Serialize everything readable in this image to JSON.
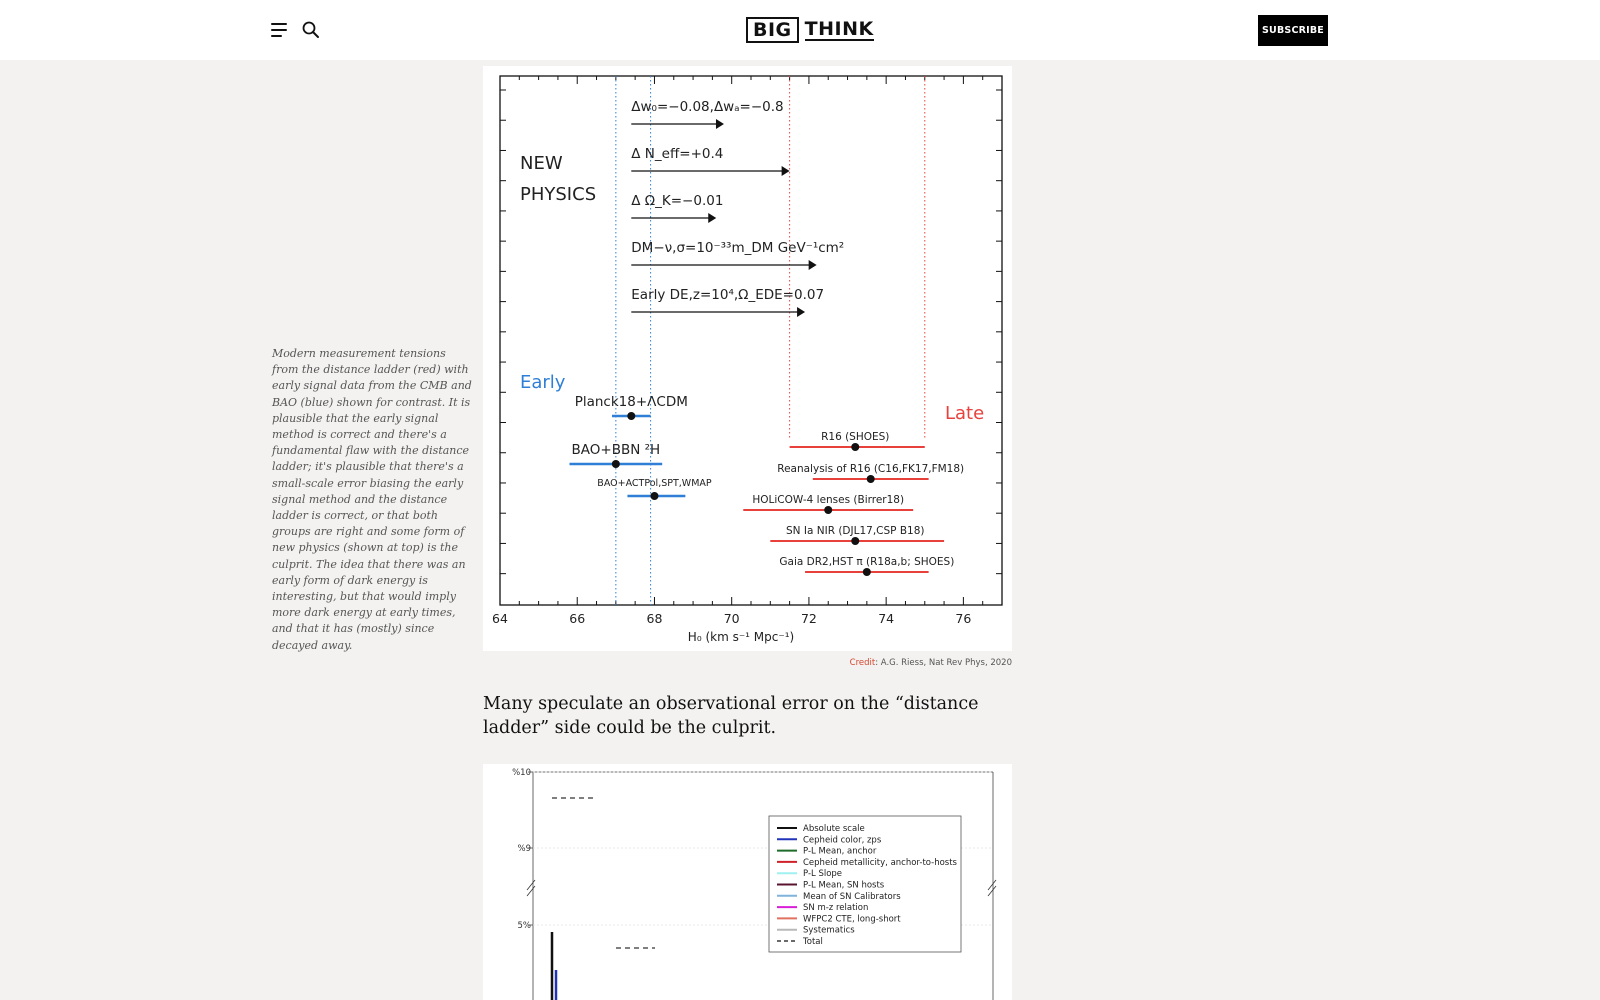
{
  "header": {
    "logo_part1": "BIG",
    "logo_part2": "THINK",
    "subscribe_label": "SUBSCRIBE"
  },
  "figure1": {
    "new_physics_line1": "NEW",
    "new_physics_line2": "PHYSICS",
    "early_label": "Early",
    "late_label": "Late",
    "xlabel": "H₀ (km s⁻¹ Mpc⁻¹)",
    "new_physics_rows": [
      {
        "label": "Δw₀=−0.08,Δwₐ=−0.8",
        "arrow_end": 69.8
      },
      {
        "label": "Δ N_eff=+0.4",
        "arrow_end": 71.5
      },
      {
        "label": "Δ Ω_K=−0.01",
        "arrow_end": 69.6
      },
      {
        "label": "DM−ν,σ=10⁻³³m_DM GeV⁻¹cm²",
        "arrow_end": 72.2
      },
      {
        "label": "Early DE,z=10⁴,Ω_EDE=0.07",
        "arrow_end": 71.9
      }
    ],
    "chart_data": {
      "type": "scatter",
      "xlim": [
        64,
        77
      ],
      "x_ticks": [
        "64",
        "66",
        "68",
        "70",
        "72",
        "74",
        "76"
      ],
      "xlabel": "H₀ (km s⁻¹ Mpc⁻¹)",
      "early_band": [
        67.0,
        67.9
      ],
      "late_band": [
        71.5,
        75.0
      ],
      "series": [
        {
          "name": "Early",
          "color": "#2f7fd6",
          "points": [
            {
              "label": "Planck18+ΛCDM",
              "value": 67.4,
              "low": 66.9,
              "high": 67.9
            },
            {
              "label": "BAO+BBN ²H",
              "value": 67.0,
              "low": 65.8,
              "high": 68.2
            },
            {
              "label": "BAO+ACTPol,SPT,WMAP",
              "value": 68.0,
              "low": 67.3,
              "high": 68.8
            }
          ]
        },
        {
          "name": "Late",
          "color": "#e8413c",
          "points": [
            {
              "label": "R16 (SHOES)",
              "value": 73.2,
              "low": 71.5,
              "high": 75.0
            },
            {
              "label": "Reanalysis of R16 (C16,FK17,FM18)",
              "value": 73.6,
              "low": 72.1,
              "high": 75.1
            },
            {
              "label": "HOLiCOW-4 lenses (Birrer18)",
              "value": 72.5,
              "low": 70.3,
              "high": 74.7
            },
            {
              "label": "SN Ia NIR (DJL17,CSP B18)",
              "value": 73.2,
              "low": 71.0,
              "high": 75.5
            },
            {
              "label": "Gaia DR2,HST π (R18a,b; SHOES)",
              "value": 73.5,
              "low": 71.9,
              "high": 75.1
            }
          ]
        }
      ]
    }
  },
  "caption": "Modern measurement tensions from the distance ladder (red) with early signal data from the CMB and BAO (blue) shown for contrast. It is plausible that the early signal method is correct and there's a fundamental flaw with the distance ladder; it's plausible that there's a small-scale error biasing the early signal method and the distance ladder is correct, or that both groups are right and some form of new physics (shown at top) is the culprit. The idea that there was an early form of dark energy is interesting, but that would imply more dark energy at early times, and that it has (mostly) since decayed away.",
  "credit": {
    "label": "Credit",
    "text": ": A.G. Riess, Nat Rev Phys, 2020"
  },
  "body_text": "Many speculate an observational error on the “distance ladder” side could be the culprit.",
  "figure2": {
    "y_ticks": [
      "%10",
      "%9",
      "5%"
    ],
    "legend": [
      {
        "label": "Absolute scale",
        "color": "#111111",
        "dashed": false
      },
      {
        "label": "Cepheid color, zps",
        "color": "#2233bb",
        "dashed": false
      },
      {
        "label": "P-L Mean, anchor",
        "color": "#1f6b2a",
        "dashed": false
      },
      {
        "label": "Cepheid metallicity, anchor-to-hosts",
        "color": "#d0202a",
        "dashed": false
      },
      {
        "label": "P-L Slope",
        "color": "#9ff0f0",
        "dashed": false
      },
      {
        "label": "P-L Mean, SN hosts",
        "color": "#5a1430",
        "dashed": false
      },
      {
        "label": "Mean of SN Calibrators",
        "color": "#7fb4dc",
        "dashed": false
      },
      {
        "label": "SN m-z relation",
        "color": "#d61fd6",
        "dashed": false
      },
      {
        "label": "WFPC2 CTE, long-short",
        "color": "#e07060",
        "dashed": false
      },
      {
        "label": "Systematics",
        "color": "#b8b8b8",
        "dashed": false
      },
      {
        "label": "Total",
        "color": "#111111",
        "dashed": true
      }
    ]
  }
}
